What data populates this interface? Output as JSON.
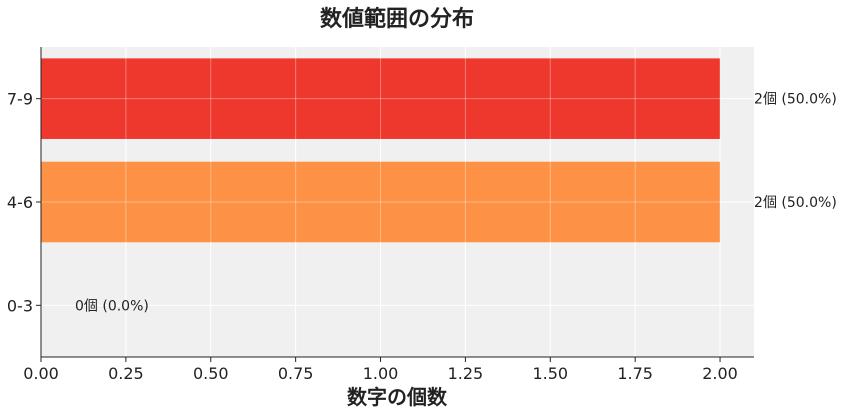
{
  "chart_data": {
    "type": "bar",
    "orientation": "horizontal",
    "title": "数値範囲の分布",
    "xlabel": "数字の個数",
    "ylabel": "",
    "categories": [
      "0-3",
      "4-6",
      "7-9"
    ],
    "values": [
      0,
      2,
      2
    ],
    "data_labels": [
      "0個 (0.0%)",
      "2個 (50.0%)",
      "2個 (50.0%)"
    ],
    "colors": [
      "#ee2d22",
      "#fd8c3c",
      "#ee2d22"
    ],
    "xlim": [
      0,
      2.1
    ],
    "x_ticks": [
      "0.00",
      "0.25",
      "0.50",
      "0.75",
      "1.00",
      "1.25",
      "1.50",
      "1.75",
      "2.00"
    ],
    "grid": true,
    "background": "#f0f0f0"
  }
}
